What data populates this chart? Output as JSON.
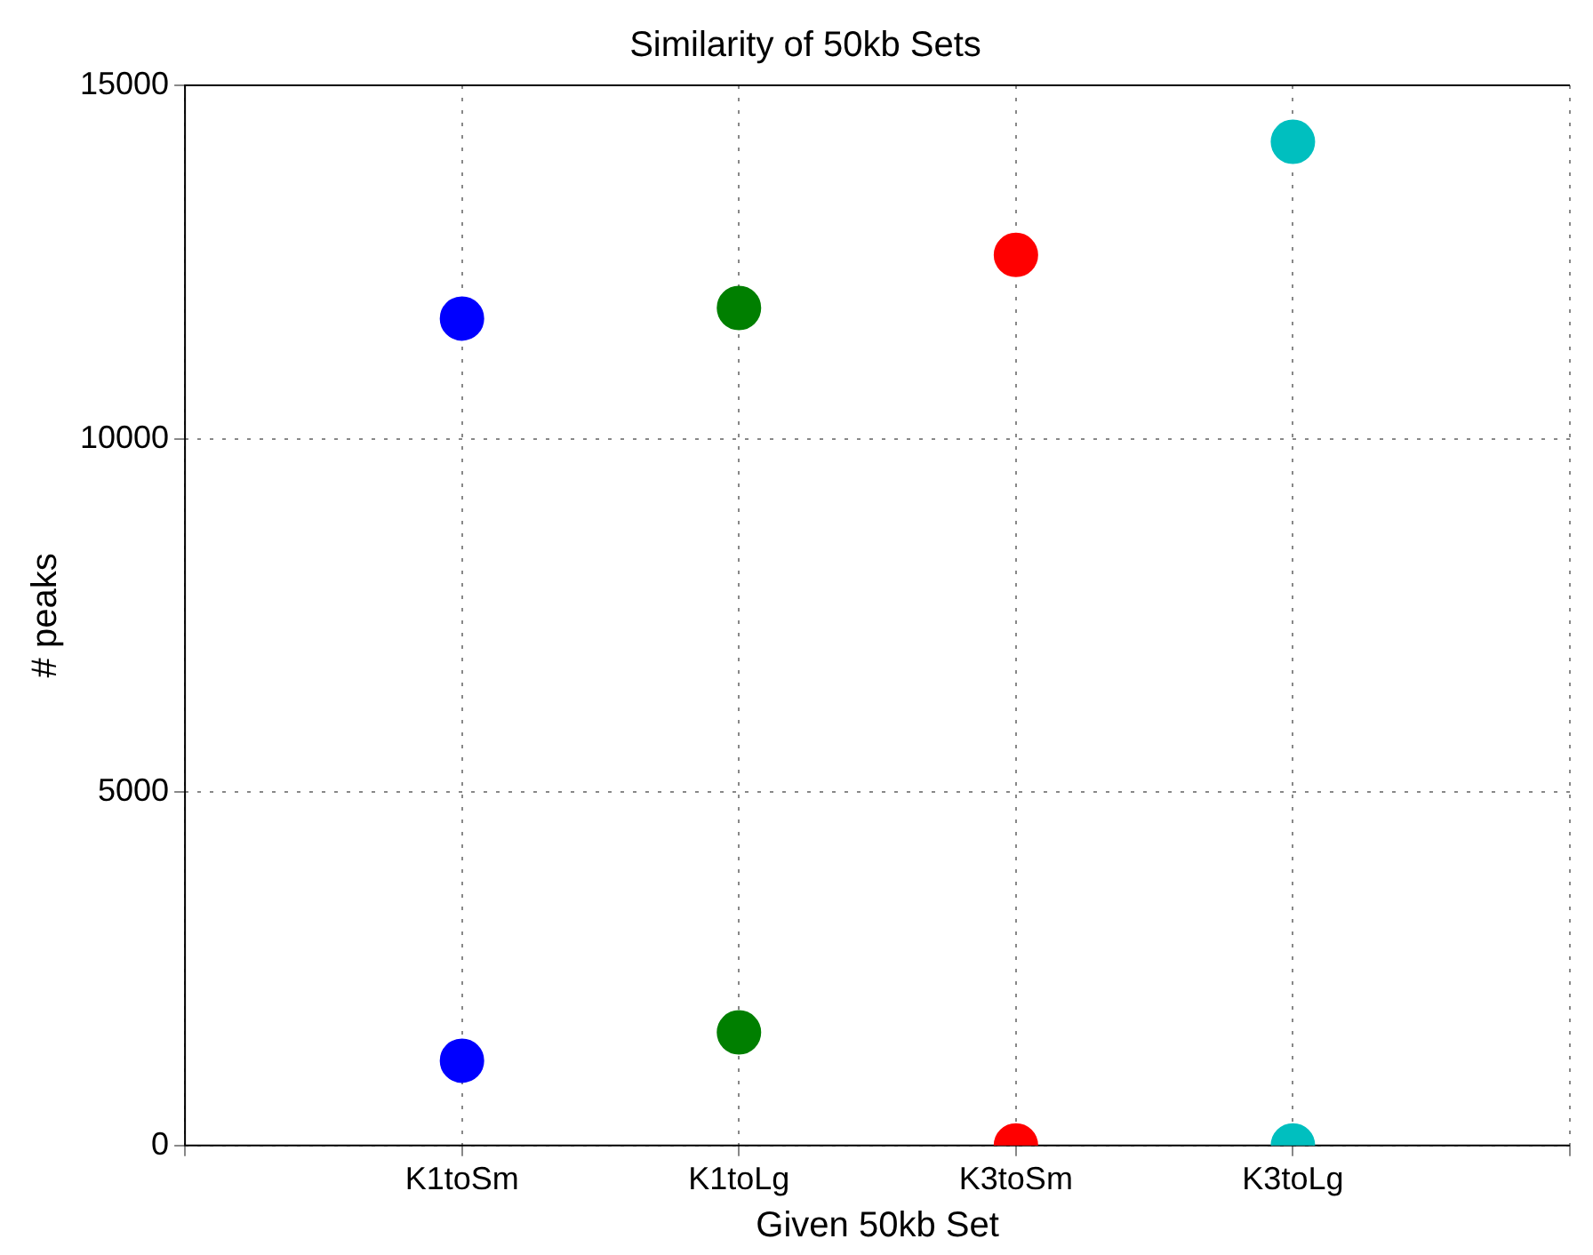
{
  "chart_data": {
    "type": "scatter",
    "title": "Similarity of 50kb Sets",
    "xlabel": "Given 50kb Set",
    "ylabel": "# peaks",
    "categories": [
      "K1toSm",
      "K1toLg",
      "K3toSm",
      "K3toLg"
    ],
    "series": [
      {
        "color": "#0000ff",
        "x": [
          "K1toSm",
          "K1toSm"
        ],
        "values": [
          11700,
          1200
        ]
      },
      {
        "color": "#007f00",
        "x": [
          "K1toLg",
          "K1toLg"
        ],
        "values": [
          11850,
          1600
        ]
      },
      {
        "color": "#ff0000",
        "x": [
          "K3toSm",
          "K3toSm"
        ],
        "values": [
          12600,
          0
        ]
      },
      {
        "color": "#00bfbf",
        "x": [
          "K3toLg",
          "K3toLg"
        ],
        "values": [
          14200,
          0
        ]
      }
    ],
    "ylim": [
      0,
      15000
    ],
    "yticks": [
      0,
      5000,
      10000,
      15000
    ],
    "grid": true,
    "legend": false,
    "marker": "circle"
  }
}
